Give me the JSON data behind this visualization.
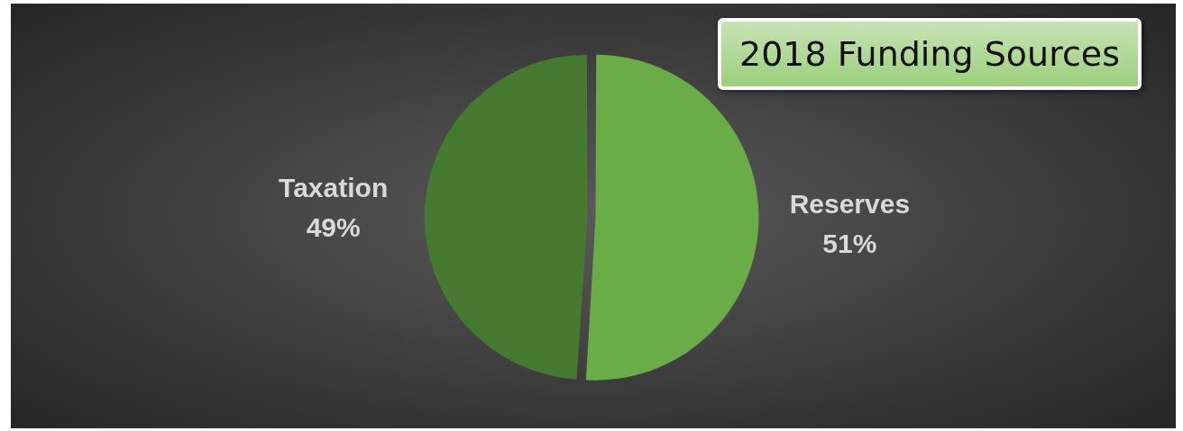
{
  "chart_data": {
    "type": "pie",
    "title": "2018 Funding Sources",
    "categories": [
      "Reserves",
      "Taxation"
    ],
    "values": [
      51,
      49
    ],
    "colors": [
      "#6aac46",
      "#467a30"
    ],
    "value_labels": [
      "51%",
      "49%"
    ],
    "legend": false
  }
}
